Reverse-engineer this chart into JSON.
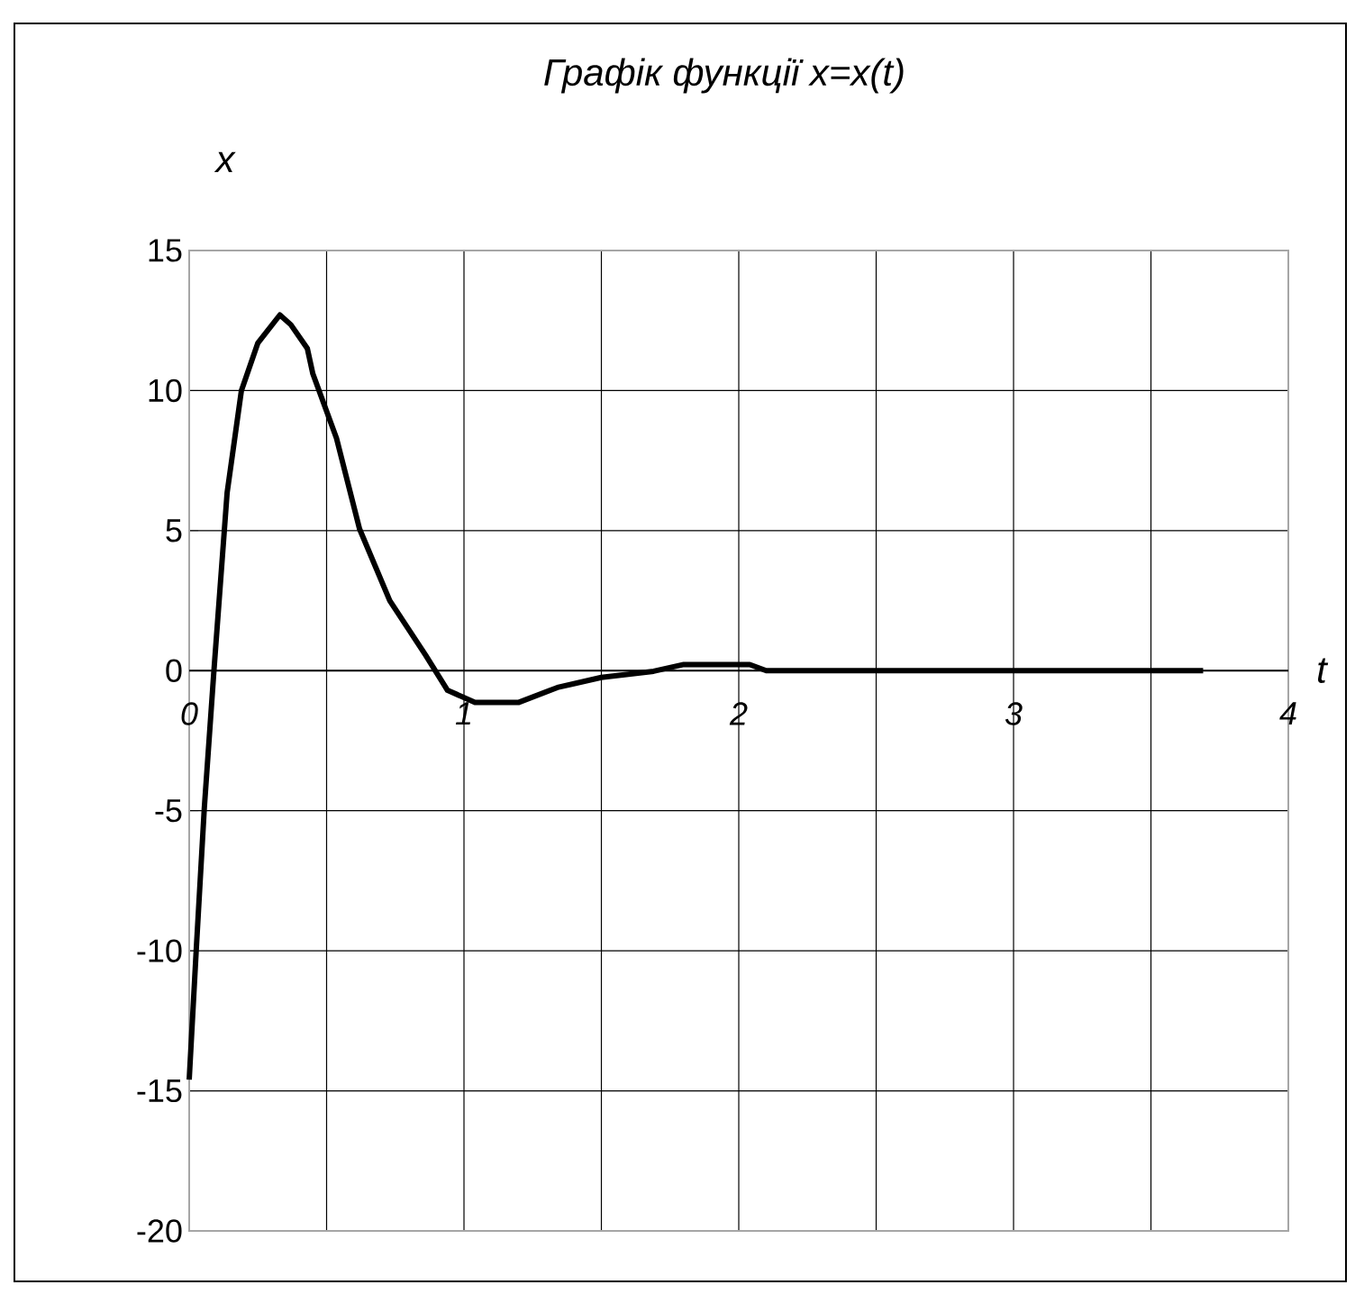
{
  "chart_data": {
    "type": "line",
    "title": "Графік функції  x=x(t)",
    "xlabel": "t",
    "ylabel": "x",
    "x": [
      0,
      0.026,
      0.055,
      0.09,
      0.138,
      0.19,
      0.25,
      0.33,
      0.37,
      0.43,
      0.45,
      0.536,
      0.62,
      0.73,
      0.86,
      0.94,
      1.04,
      1.2,
      1.34,
      1.5,
      1.69,
      1.8,
      2.04,
      2.1,
      3.69
    ],
    "series": [
      {
        "color": "#000000",
        "values": [
          -14.6,
          -9.9,
          -4.9,
          0,
          6.35,
          10,
          11.7,
          12.7,
          12.35,
          11.5,
          10.6,
          8.3,
          5.06,
          2.5,
          0.56,
          -0.7,
          -1.13,
          -1.13,
          -0.6,
          -0.24,
          -0.02,
          0.22,
          0.22,
          0,
          0
        ]
      }
    ],
    "xlim": [
      0,
      4
    ],
    "ylim": [
      -20,
      15
    ],
    "xticks": [
      0,
      {
        "value": 0.5,
        "label": null
      },
      1,
      {
        "value": 1.5,
        "label": null
      },
      2,
      {
        "value": 2.5,
        "label": null
      },
      3,
      {
        "value": 3.5,
        "label": null
      },
      4
    ],
    "yticks": [
      -20,
      -15,
      -10,
      -5,
      0,
      5,
      10,
      15
    ],
    "grid": true,
    "marker": "none",
    "line_style": "solid"
  }
}
